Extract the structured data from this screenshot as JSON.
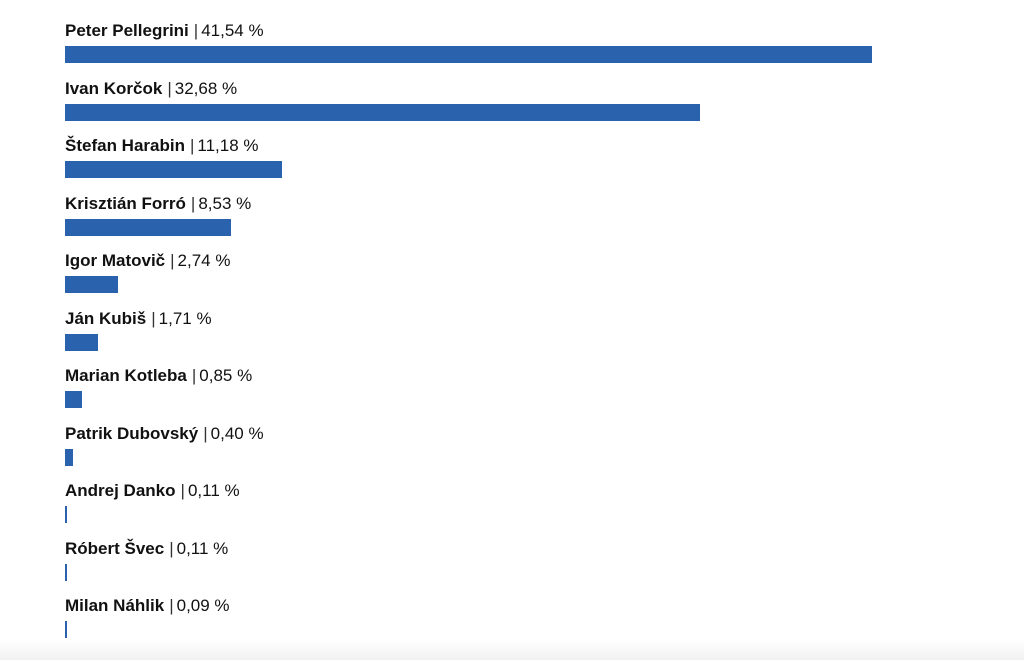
{
  "chart_data": {
    "type": "bar",
    "orientation": "horizontal",
    "unit": "%",
    "bar_color": "#2a62ad",
    "xlim": [
      0,
      46.3
    ],
    "categories": [
      "Peter Pellegrini",
      "Ivan Korčok",
      "Štefan Harabin",
      "Krisztián Forró",
      "Igor Matovič",
      "Ján Kubiš",
      "Marian Kotleba",
      "Patrik Dubovský",
      "Andrej Danko",
      "Róbert Švec",
      "Milan Náhlik"
    ],
    "values": [
      41.54,
      32.68,
      11.18,
      8.53,
      2.74,
      1.71,
      0.85,
      0.4,
      0.11,
      0.11,
      0.09
    ],
    "value_labels": [
      "41,54 %",
      "32,68 %",
      "11,18 %",
      "8,53 %",
      "2,74 %",
      "1,71 %",
      "0,85 %",
      "0,40 %",
      "0,11 %",
      "0,11 %",
      "0,09 %"
    ],
    "separator": "|"
  }
}
